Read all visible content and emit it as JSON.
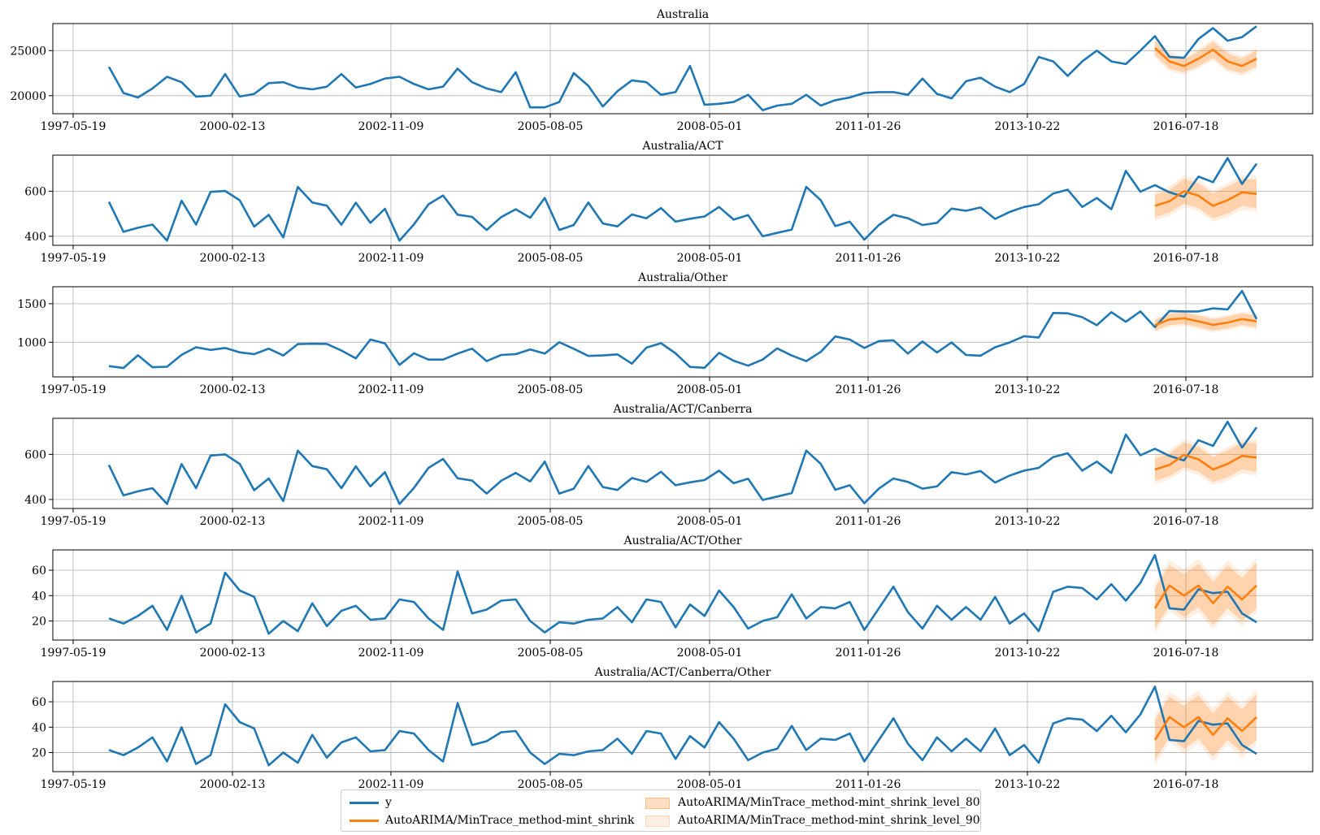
{
  "colors": {
    "actual": "#1f77b4",
    "forecast": "#ff7f0e",
    "band80": "rgba(255,127,14,0.25)",
    "band90": "rgba(255,127,14,0.12)"
  },
  "legend": {
    "y": "y",
    "forecast": "AutoARIMA/MinTrace_method-mint_shrink",
    "level80": "AutoARIMA/MinTrace_method-mint_shrink_level_80",
    "level90": "AutoARIMA/MinTrace_method-mint_shrink_level_90"
  },
  "chart_data": [
    {
      "type": "line",
      "title": "Australia",
      "x_tick_labels": [
        "1997-05-19",
        "2000-02-13",
        "2002-11-09",
        "2005-08-05",
        "2008-05-01",
        "2011-01-26",
        "2013-10-22",
        "2016-07-18"
      ],
      "ylim": [
        18000,
        28000
      ],
      "y_ticks": [
        20000,
        25000
      ],
      "grid": true,
      "series": [
        {
          "name": "y",
          "values": [
            23200,
            20300,
            19800,
            20800,
            22100,
            21500,
            19900,
            20000,
            22400,
            19900,
            20200,
            21400,
            21500,
            20900,
            20700,
            21000,
            22400,
            20900,
            21300,
            21900,
            22100,
            21300,
            20700,
            21000,
            23000,
            21500,
            20800,
            20400,
            22600,
            18700,
            18700,
            19300,
            22500,
            21100,
            18800,
            20500,
            21700,
            21500,
            20100,
            20400,
            23300,
            19000,
            19100,
            19300,
            20100,
            18400,
            18900,
            19100,
            20100,
            18900,
            19500,
            19800,
            20300,
            20400,
            20400,
            20100,
            21900,
            20200,
            19700,
            21600,
            22000,
            21000,
            20400,
            21300,
            24300,
            23800,
            22200,
            23800,
            25000,
            23800,
            23500,
            25000,
            26600,
            24300,
            24200,
            26300,
            27500,
            26100,
            26500,
            27700
          ]
        },
        {
          "name": "AutoARIMA/MinTrace_method-mint_shrink",
          "start_index": 72,
          "values": [
            25300,
            23800,
            23300,
            24100,
            25100,
            23800,
            23300,
            24100
          ]
        },
        {
          "name": "AutoARIMA/MinTrace_method-mint_shrink_level_80",
          "start_index": 72,
          "lo": [
            24500,
            23000,
            22600,
            23300,
            24200,
            22900,
            22500,
            23200
          ],
          "hi": [
            26100,
            24600,
            24000,
            24900,
            26000,
            24700,
            24100,
            25000
          ]
        },
        {
          "name": "AutoARIMA/MinTrace_method-mint_shrink_level_90",
          "start_index": 72,
          "lo": [
            24200,
            22700,
            22300,
            23000,
            23900,
            22600,
            22200,
            22900
          ],
          "hi": [
            26400,
            24900,
            24300,
            25200,
            26300,
            25000,
            24400,
            25300
          ]
        }
      ]
    },
    {
      "type": "line",
      "title": "Australia/ACT",
      "x_tick_labels": [
        "1997-05-19",
        "2000-02-13",
        "2002-11-09",
        "2005-08-05",
        "2008-05-01",
        "2011-01-26",
        "2013-10-22",
        "2016-07-18"
      ],
      "ylim": [
        360,
        760
      ],
      "y_ticks": [
        400,
        600
      ],
      "grid": true,
      "series": [
        {
          "name": "y",
          "values": [
            553,
            420,
            438,
            452,
            381,
            558,
            452,
            597,
            601,
            560,
            443,
            495,
            395,
            619,
            550,
            536,
            451,
            549,
            460,
            522,
            381,
            453,
            542,
            581,
            496,
            486,
            428,
            485,
            520,
            482,
            570,
            428,
            450,
            550,
            457,
            444,
            497,
            480,
            525,
            465,
            478,
            488,
            530,
            474,
            494,
            400,
            415,
            430,
            619,
            560,
            445,
            465,
            385,
            450,
            495,
            480,
            450,
            460,
            523,
            513,
            528,
            477,
            508,
            530,
            542,
            590,
            607,
            530,
            570,
            520,
            690,
            598,
            627,
            595,
            575,
            665,
            640,
            747,
            632,
            722
          ]
        },
        {
          "name": "AutoARIMA/MinTrace_method-mint_shrink",
          "start_index": 72,
          "values": [
            535,
            555,
            600,
            580,
            535,
            560,
            595,
            588
          ]
        },
        {
          "name": "AutoARIMA/MinTrace_method-mint_shrink_level_80",
          "start_index": 72,
          "lo": [
            485,
            505,
            545,
            525,
            480,
            500,
            535,
            525
          ],
          "hi": [
            585,
            605,
            655,
            635,
            590,
            620,
            655,
            651
          ]
        },
        {
          "name": "AutoARIMA/MinTrace_method-mint_shrink_level_90",
          "start_index": 72,
          "lo": [
            470,
            490,
            530,
            510,
            465,
            485,
            518,
            508
          ],
          "hi": [
            600,
            620,
            670,
            650,
            605,
            635,
            672,
            668
          ]
        }
      ]
    },
    {
      "type": "line",
      "title": "Australia/Other",
      "x_tick_labels": [
        "1997-05-19",
        "2000-02-13",
        "2002-11-09",
        "2005-08-05",
        "2008-05-01",
        "2011-01-26",
        "2013-10-22",
        "2016-07-18"
      ],
      "ylim": [
        550,
        1720
      ],
      "y_ticks": [
        1000,
        1500
      ],
      "grid": true,
      "series": [
        {
          "name": "y",
          "values": [
            690,
            665,
            830,
            675,
            682,
            836,
            935,
            900,
            925,
            868,
            845,
            917,
            827,
            976,
            980,
            978,
            893,
            790,
            1035,
            985,
            705,
            857,
            775,
            775,
            852,
            917,
            755,
            835,
            845,
            905,
            852,
            1000,
            915,
            822,
            828,
            842,
            722,
            929,
            987,
            856,
            680,
            668,
            862,
            760,
            695,
            775,
            920,
            827,
            755,
            875,
            1075,
            1035,
            925,
            1015,
            1025,
            852,
            1010,
            867,
            997,
            835,
            825,
            935,
            997,
            1078,
            1060,
            1380,
            1375,
            1325,
            1220,
            1390,
            1265,
            1400,
            1195,
            1405,
            1400,
            1400,
            1440,
            1425,
            1665,
            1300
          ]
        },
        {
          "name": "AutoARIMA/MinTrace_method-mint_shrink",
          "start_index": 72,
          "values": [
            1220,
            1295,
            1310,
            1270,
            1225,
            1255,
            1300,
            1270
          ]
        },
        {
          "name": "AutoARIMA/MinTrace_method-mint_shrink_level_80",
          "start_index": 72,
          "lo": [
            1150,
            1220,
            1235,
            1195,
            1150,
            1180,
            1225,
            1190
          ],
          "hi": [
            1290,
            1370,
            1385,
            1345,
            1300,
            1330,
            1375,
            1350
          ]
        },
        {
          "name": "AutoARIMA/MinTrace_method-mint_shrink_level_90",
          "start_index": 72,
          "lo": [
            1125,
            1195,
            1210,
            1170,
            1125,
            1155,
            1200,
            1165
          ],
          "hi": [
            1315,
            1395,
            1410,
            1370,
            1325,
            1355,
            1400,
            1375
          ]
        }
      ]
    },
    {
      "type": "line",
      "title": "Australia/ACT/Canberra",
      "x_tick_labels": [
        "1997-05-19",
        "2000-02-13",
        "2002-11-09",
        "2005-08-05",
        "2008-05-01",
        "2011-01-26",
        "2013-10-22",
        "2016-07-18"
      ],
      "ylim": [
        360,
        760
      ],
      "y_ticks": [
        400,
        600
      ],
      "grid": true,
      "series": [
        {
          "name": "y",
          "values": [
            553,
            418,
            436,
            450,
            380,
            557,
            450,
            595,
            600,
            558,
            441,
            493,
            393,
            617,
            548,
            534,
            450,
            547,
            458,
            521,
            380,
            451,
            540,
            580,
            494,
            484,
            426,
            483,
            518,
            480,
            568,
            426,
            448,
            548,
            455,
            442,
            495,
            478,
            523,
            463,
            476,
            486,
            528,
            472,
            492,
            398,
            413,
            428,
            617,
            558,
            443,
            463,
            383,
            448,
            493,
            478,
            448,
            458,
            521,
            511,
            526,
            475,
            506,
            528,
            540,
            588,
            605,
            528,
            568,
            518,
            688,
            596,
            625,
            593,
            573,
            663,
            638,
            745,
            630,
            720
          ]
        },
        {
          "name": "AutoARIMA/MinTrace_method-mint_shrink",
          "start_index": 72,
          "values": [
            533,
            553,
            598,
            578,
            533,
            558,
            593,
            586
          ]
        },
        {
          "name": "AutoARIMA/MinTrace_method-mint_shrink_level_80",
          "start_index": 72,
          "lo": [
            483,
            503,
            543,
            523,
            478,
            498,
            533,
            523
          ],
          "hi": [
            583,
            603,
            653,
            633,
            588,
            618,
            653,
            649
          ]
        },
        {
          "name": "AutoARIMA/MinTrace_method-mint_shrink_level_90",
          "start_index": 72,
          "lo": [
            468,
            488,
            528,
            508,
            463,
            483,
            516,
            506
          ],
          "hi": [
            598,
            618,
            668,
            648,
            603,
            633,
            670,
            666
          ]
        }
      ]
    },
    {
      "type": "line",
      "title": "Australia/ACT/Other",
      "x_tick_labels": [
        "1997-05-19",
        "2000-02-13",
        "2002-11-09",
        "2005-08-05",
        "2008-05-01",
        "2011-01-26",
        "2013-10-22",
        "2016-07-18"
      ],
      "ylim": [
        5,
        76
      ],
      "y_ticks": [
        20,
        40,
        60
      ],
      "grid": true,
      "series": [
        {
          "name": "y",
          "values": [
            22,
            18,
            24,
            32,
            13,
            40,
            11,
            18,
            58,
            44,
            39,
            10,
            20,
            12,
            34,
            16,
            28,
            32,
            21,
            22,
            37,
            35,
            22,
            13,
            59,
            26,
            29,
            36,
            37,
            20,
            11,
            19,
            18,
            21,
            22,
            31,
            19,
            37,
            35,
            15,
            33,
            24,
            44,
            31,
            14,
            20,
            23,
            41,
            22,
            31,
            30,
            35,
            13,
            30,
            47,
            27,
            14,
            32,
            21,
            31,
            21,
            39,
            18,
            26,
            12,
            43,
            47,
            46,
            37,
            49,
            36,
            50,
            72,
            30,
            29,
            45,
            42,
            43,
            26,
            19
          ]
        },
        {
          "name": "AutoARIMA/MinTrace_method-mint_shrink",
          "start_index": 72,
          "values": [
            30,
            48,
            40,
            48,
            34,
            47,
            37,
            48
          ]
        },
        {
          "name": "AutoARIMA/MinTrace_method-mint_shrink_level_80",
          "start_index": 72,
          "lo": [
            14,
            32,
            23,
            31,
            17,
            30,
            20,
            30
          ],
          "hi": [
            46,
            64,
            57,
            65,
            51,
            64,
            54,
            66
          ]
        },
        {
          "name": "AutoARIMA/MinTrace_method-mint_shrink_level_90",
          "start_index": 72,
          "lo": [
            10,
            28,
            19,
            27,
            13,
            26,
            16,
            26
          ],
          "hi": [
            50,
            68,
            61,
            69,
            55,
            68,
            58,
            70
          ]
        }
      ]
    },
    {
      "type": "line",
      "title": "Australia/ACT/Canberra/Other",
      "x_tick_labels": [
        "1997-05-19",
        "2000-02-13",
        "2002-11-09",
        "2005-08-05",
        "2008-05-01",
        "2011-01-26",
        "2013-10-22",
        "2016-07-18"
      ],
      "ylim": [
        5,
        76
      ],
      "y_ticks": [
        20,
        40,
        60
      ],
      "grid": true,
      "series": [
        {
          "name": "y",
          "values": [
            22,
            18,
            24,
            32,
            13,
            40,
            11,
            18,
            58,
            44,
            39,
            10,
            20,
            12,
            34,
            16,
            28,
            32,
            21,
            22,
            37,
            35,
            22,
            13,
            59,
            26,
            29,
            36,
            37,
            20,
            11,
            19,
            18,
            21,
            22,
            31,
            19,
            37,
            35,
            15,
            33,
            24,
            44,
            31,
            14,
            20,
            23,
            41,
            22,
            31,
            30,
            35,
            13,
            30,
            47,
            27,
            14,
            32,
            21,
            31,
            21,
            39,
            18,
            26,
            12,
            43,
            47,
            46,
            37,
            49,
            36,
            50,
            72,
            30,
            29,
            45,
            42,
            43,
            26,
            19
          ]
        },
        {
          "name": "AutoARIMA/MinTrace_method-mint_shrink",
          "start_index": 72,
          "values": [
            30,
            48,
            40,
            48,
            34,
            47,
            37,
            48
          ]
        },
        {
          "name": "AutoARIMA/MinTrace_method-mint_shrink_level_80",
          "start_index": 72,
          "lo": [
            14,
            32,
            23,
            31,
            17,
            30,
            20,
            30
          ],
          "hi": [
            46,
            64,
            57,
            65,
            51,
            64,
            54,
            66
          ]
        },
        {
          "name": "AutoARIMA/MinTrace_method-mint_shrink_level_90",
          "start_index": 72,
          "lo": [
            10,
            28,
            19,
            27,
            13,
            26,
            16,
            26
          ],
          "hi": [
            50,
            68,
            61,
            69,
            55,
            68,
            58,
            70
          ]
        }
      ]
    }
  ]
}
